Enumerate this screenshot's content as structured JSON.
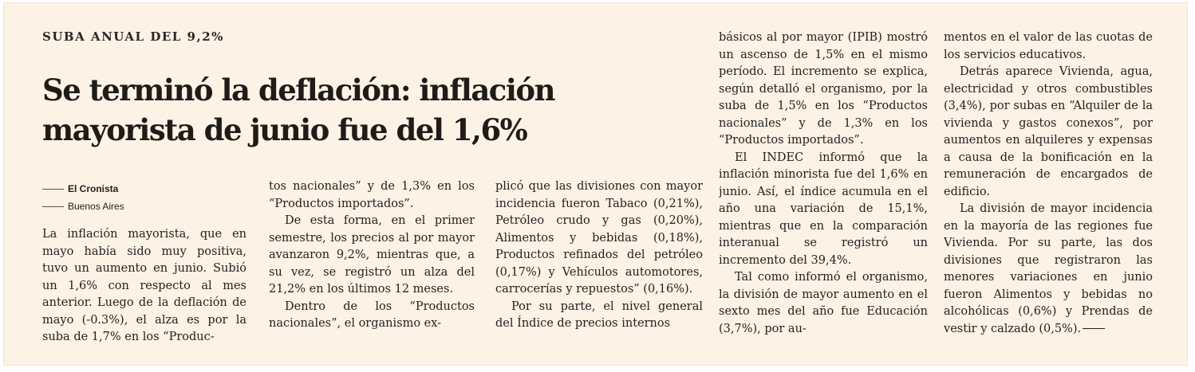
{
  "article": {
    "kicker": "SUBA ANUAL DEL 9,2%",
    "headline_line1": "Se terminó la deflación: inflación",
    "headline_line2": "mayorista de junio fue del 1,6%",
    "byline": {
      "author": "El Cronista",
      "location": "Buenos Aires"
    },
    "columns": [
      [
        "La inflación mayorista, que en mayo había sido muy positiva, tuvo un aumento en junio. Subió un 1,6% con respecto al mes anterior. Luego de la deflación de mayo (-0.3%), el alza es por la suba de 1,7% en los “Produc-"
      ],
      [
        "tos nacionales” y de 1,3% en los “Productos importados”.",
        "De esta forma, en el primer semestre, los precios al por mayor avanzaron 9,2%, mientras que, a su vez, se registró un alza del 21,2% en los últimos 12 meses.",
        "Dentro de los “Productos nacionales”, el organismo ex-"
      ],
      [
        "plicó que las divisiones con mayor incidencia fueron Tabaco (0,21%), Petróleo crudo y gas (0,20%), Alimentos y bebidas (0,18%), Productos refinados del petróleo (0,17%) y Vehículos automotores, carrocerías y repuestos” (0,16%).",
        "Por su parte, el nivel general del Índice de precios internos"
      ],
      [
        "básicos al por mayor (IPIB) mostró un ascenso de 1,5% en el mismo período. El incremento se explica, según detalló el organismo, por la suba de 1,5% en los “Productos nacionales” y de 1,3% en los “Productos importados”.",
        "El INDEC informó que la inflación minorista fue del 1,6% en junio. Así, el índice acumula en el año una variación de 15,1%, mientras que en la comparación interanual se registró un incremento del 39,4%.",
        "Tal como informó el organismo, la división de mayor aumento en el sexto mes del año fue Educación (3,7%), por au-"
      ],
      [
        "mentos en el valor de las cuotas de los servicios educativos.",
        "Detrás aparece Vivienda, agua, electricidad y otros combustibles (3,4%), por subas en “Alquiler de la vivienda y gastos conexos”, por aumentos en alquileres y expensas a causa de la bonificación en la remuneración de encargados de edificio.",
        "La división de mayor incidencia en la mayoría de las regiones fue Vivienda. Por su parte, las dos divisiones que registraron las menores variaciones en junio fueron Alimentos y bebidas no alcohólicas (0,6%) y Prendas de vestir y calzado (0,5%)."
      ]
    ]
  }
}
